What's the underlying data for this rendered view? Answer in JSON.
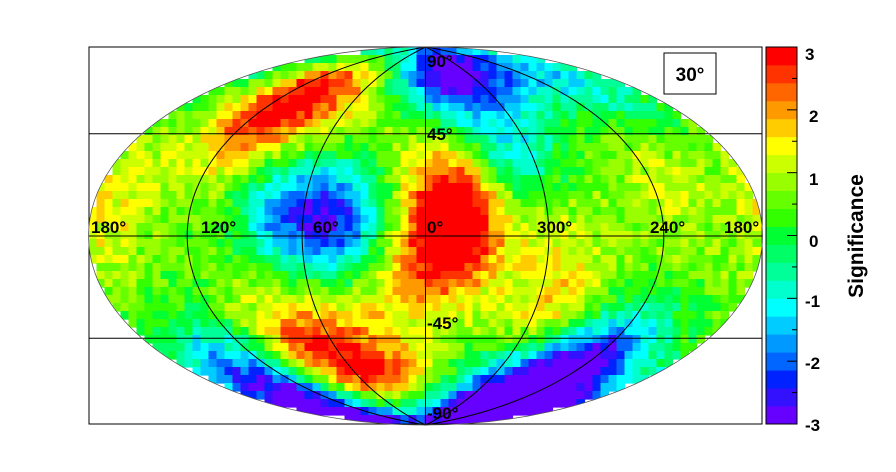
{
  "chart_data": {
    "type": "heatmap",
    "projection": "hammer-aitoff",
    "inset_label": "30°",
    "colorbar": {
      "title": "Significance",
      "range": [
        -3,
        3
      ],
      "ticks": [
        "3",
        "2",
        "1",
        "0",
        "-1",
        "-2",
        "-3"
      ],
      "colors": [
        "#6600ff",
        "#3311ff",
        "#0022ff",
        "#0066ff",
        "#0099ff",
        "#00ccff",
        "#00ffff",
        "#00ffcc",
        "#00ff99",
        "#00ff66",
        "#00ff33",
        "#33ff00",
        "#66ff00",
        "#99ff00",
        "#ccff00",
        "#ffff00",
        "#ffcc00",
        "#ff9900",
        "#ff6600",
        "#ff3300",
        "#ff0000"
      ]
    },
    "longitude_labels": [
      "180°",
      "120°",
      "60°",
      "0°",
      "300°",
      "240°",
      "180°"
    ],
    "latitude_labels": [
      "90°",
      "45°",
      "-45°",
      "-90°"
    ],
    "hotspots": [
      {
        "lon": 110,
        "lat": 50,
        "sigma": 2.6
      },
      {
        "lon": 75,
        "lat": 70,
        "sigma": 2.3
      },
      {
        "lon": 345,
        "lat": 15,
        "sigma": 2.8
      },
      {
        "lon": 350,
        "lat": -5,
        "sigma": 2.4
      },
      {
        "lon": 45,
        "lat": -65,
        "sigma": 2.6
      },
      {
        "lon": 75,
        "lat": -45,
        "sigma": 2.2
      },
      {
        "lon": 170,
        "lat": 10,
        "sigma": 1.4
      },
      {
        "lon": 290,
        "lat": -30,
        "sigma": 1.6
      },
      {
        "lon": 300,
        "lat": 10,
        "sigma": 1.3
      },
      {
        "lon": 20,
        "lat": -20,
        "sigma": 1.4
      },
      {
        "lon": 230,
        "lat": 20,
        "sigma": 1.2
      },
      {
        "lon": 10,
        "lat": 55,
        "sigma": 1.0
      }
    ],
    "coldspots": [
      {
        "lon": 320,
        "lat": 75,
        "sigma": -2.4
      },
      {
        "lon": 270,
        "lat": -70,
        "sigma": -2.8
      },
      {
        "lon": 240,
        "lat": -50,
        "sigma": -2.2
      },
      {
        "lon": 40,
        "lat": 5,
        "sigma": -2.2
      },
      {
        "lon": 70,
        "lat": 10,
        "sigma": -1.6
      },
      {
        "lon": 140,
        "lat": -55,
        "sigma": -1.8
      },
      {
        "lon": 150,
        "lat": -80,
        "sigma": -2.0
      },
      {
        "lon": 310,
        "lat": 30,
        "sigma": -1.3
      },
      {
        "lon": 10,
        "lat": 75,
        "sigma": -1.1
      },
      {
        "lon": 210,
        "lat": 60,
        "sigma": -0.9
      }
    ]
  }
}
